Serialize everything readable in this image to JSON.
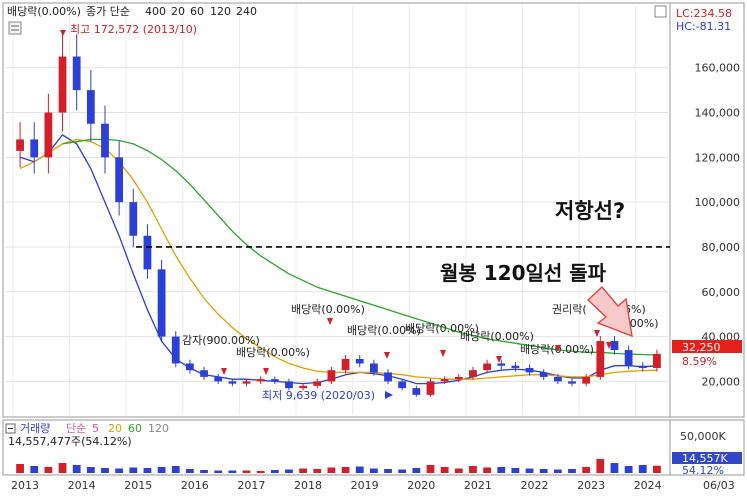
{
  "legend": {
    "price_prefix": "배당락(0.00%)",
    "ma_label": "종가 단순",
    "ma_periods": [
      "400",
      "20",
      "60",
      "120",
      "240"
    ],
    "ma_colors": [
      "#d21f2a",
      "#2c3fd6",
      "#e0a200",
      "#2aa52a",
      "#888888"
    ],
    "volume_label": "거래량",
    "volume_ma_label": "단순",
    "volume_ma_periods": [
      "5",
      "20",
      "60",
      "120"
    ],
    "volume_ma_colors": [
      "#d21f2a",
      "#e0a200",
      "#2aa52a",
      "#888888"
    ],
    "volume_value": "14,557,477주(54.12%)"
  },
  "corner": {
    "lc": "LC:234.58",
    "hc": "HC:-81.31"
  },
  "price_tag": {
    "value": "32,250",
    "pct": "8.59%"
  },
  "volume_tag": {
    "value": "14,557K",
    "pct": "54.12%"
  },
  "annotations": {
    "high": "최고 172,572 (2013/10)",
    "low": "최저 9,639 (2020/03)",
    "resistance": "저항선?",
    "breakout": "월봉 120일선 돌파",
    "cap_reduction": "감자(900.00%)",
    "dividend": "배당락(0.00%)",
    "rights": "권리락(",
    "rights_pct": "16%)",
    "pct_0": "(0.00%)"
  },
  "chart_data": {
    "type": "candlestick",
    "x_tick_labels": [
      "2013",
      "2014",
      "2015",
      "2016",
      "2017",
      "2018",
      "2019",
      "2020",
      "2021",
      "2022",
      "2023",
      "2024",
      "06/03"
    ],
    "y_tick_labels": [
      "160,000",
      "140,000",
      "120,000",
      "100,000",
      "80,000",
      "60,000",
      "40,000",
      "20,000"
    ],
    "volume_tick_labels": [
      "50,000K"
    ],
    "ylim": [
      5000,
      188000
    ],
    "resistance_level": 80000,
    "last_close": 32250,
    "high_value": 172572,
    "low_value": 9639,
    "periods": [
      "2013-01",
      "2013-04",
      "2013-07",
      "2013-10",
      "2014-01",
      "2014-04",
      "2014-07",
      "2014-10",
      "2015-01",
      "2015-04",
      "2015-07",
      "2015-10",
      "2016-01",
      "2016-04",
      "2016-07",
      "2016-10",
      "2017-01",
      "2017-04",
      "2017-07",
      "2017-10",
      "2018-01",
      "2018-04",
      "2018-07",
      "2018-10",
      "2019-01",
      "2019-04",
      "2019-07",
      "2019-10",
      "2020-01",
      "2020-04",
      "2020-07",
      "2020-10",
      "2021-01",
      "2021-04",
      "2021-07",
      "2021-10",
      "2022-01",
      "2022-04",
      "2022-07",
      "2022-10",
      "2023-01",
      "2023-04",
      "2023-07",
      "2023-10",
      "2024-01",
      "2024-04"
    ],
    "close": [
      128000,
      120000,
      140000,
      165000,
      150000,
      135000,
      120000,
      100000,
      85000,
      70000,
      40000,
      28000,
      25000,
      22000,
      20000,
      19000,
      20000,
      21000,
      20000,
      17000,
      18000,
      20000,
      25000,
      30000,
      28000,
      24000,
      20000,
      17000,
      14000,
      20000,
      21000,
      22000,
      25000,
      28000,
      27000,
      26000,
      24000,
      22000,
      20000,
      19000,
      22000,
      38000,
      34000,
      27000,
      26000,
      32250
    ],
    "volume_k": [
      18000,
      14000,
      12000,
      20000,
      16000,
      12000,
      10000,
      9000,
      11000,
      10000,
      12000,
      14000,
      8000,
      6000,
      5000,
      5000,
      5000,
      4000,
      6000,
      7000,
      9000,
      8000,
      11000,
      12000,
      13000,
      9000,
      8000,
      7000,
      10000,
      16000,
      12000,
      9000,
      14000,
      11000,
      12000,
      10000,
      9000,
      8000,
      7000,
      8000,
      12000,
      28000,
      20000,
      14000,
      16000,
      14557
    ],
    "ma20": [
      120000,
      118000,
      122000,
      130000,
      126000,
      115000,
      100000,
      85000,
      68000,
      52000,
      38000,
      30000,
      26000,
      23000,
      22000,
      21000,
      21000,
      20500,
      20000,
      19500,
      19000,
      19500,
      21000,
      23000,
      24000,
      23500,
      22500,
      21000,
      19000,
      19000,
      19500,
      20500,
      22000,
      24000,
      25000,
      25500,
      25000,
      24000,
      22500,
      21500,
      21500,
      25000,
      27000,
      27000,
      26500,
      27000
    ],
    "ma60": [
      115000,
      118000,
      122000,
      126000,
      128000,
      127000,
      124000,
      118000,
      110000,
      100000,
      88000,
      76000,
      66000,
      57000,
      50000,
      44000,
      39000,
      35000,
      31000,
      28000,
      26000,
      24500,
      24000,
      24000,
      24000,
      24000,
      23500,
      23000,
      22000,
      21500,
      21000,
      21000,
      21000,
      21500,
      22000,
      22500,
      23000,
      23000,
      22500,
      22000,
      22000,
      23000,
      24000,
      24500,
      24800,
      25000
    ],
    "ma120": [
      null,
      null,
      null,
      126000,
      127000,
      128000,
      128000,
      127500,
      126000,
      123000,
      119000,
      114000,
      108000,
      101000,
      94000,
      87000,
      81000,
      76000,
      72000,
      68000,
      65000,
      62000,
      60000,
      58000,
      56000,
      54000,
      52000,
      50000,
      48000,
      46000,
      44000,
      42000,
      40500,
      39000,
      38000,
      37000,
      36000,
      35000,
      34000,
      33500,
      33000,
      33000,
      32500,
      32200,
      32000,
      31800
    ]
  }
}
